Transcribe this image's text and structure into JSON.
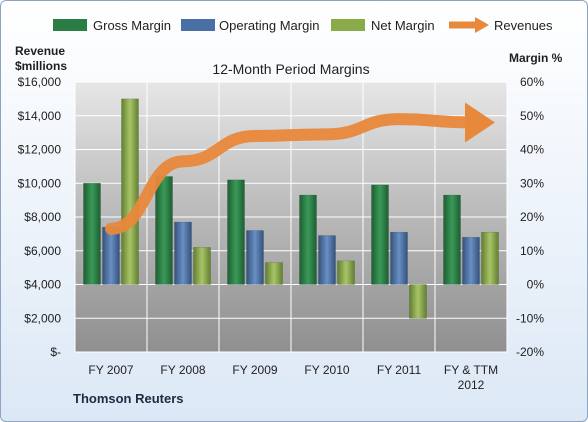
{
  "chart_data": {
    "type": "bar",
    "title": "12-Month Period Margins",
    "categories": [
      "FY 2007",
      "FY 2008",
      "FY 2009",
      "FY 2010",
      "FY 2011",
      "FY & TTM 2012"
    ],
    "y_left": {
      "label_lines": [
        "Revenue",
        "$millions"
      ],
      "range": [
        0,
        16000
      ],
      "tick_values": [
        0,
        2000,
        4000,
        6000,
        8000,
        10000,
        12000,
        14000,
        16000
      ],
      "tick_labels": [
        "$-",
        "$2,000",
        "$4,000",
        "$6,000",
        "$8,000",
        "$10,000",
        "$12,000",
        "$14,000",
        "$16,000"
      ]
    },
    "y_right": {
      "label": "Margin %",
      "range": [
        -20,
        60
      ],
      "tick_values": [
        -20,
        -10,
        0,
        10,
        20,
        30,
        40,
        50,
        60
      ],
      "tick_labels": [
        "-20%",
        "-10%",
        "0%",
        "10%",
        "20%",
        "30%",
        "40%",
        "50%",
        "60%"
      ]
    },
    "series": [
      {
        "name": "Gross Margin",
        "axis": "right",
        "color": "#2a7d45",
        "values": [
          30,
          32,
          31,
          26.5,
          29.5,
          26.5
        ]
      },
      {
        "name": "Operating Margin",
        "axis": "right",
        "color": "#4a6fa5",
        "values": [
          17,
          18.5,
          16,
          14.5,
          15.5,
          14
        ]
      },
      {
        "name": "Net Margin",
        "axis": "right",
        "color": "#8aab4a",
        "values": [
          55,
          11,
          6.5,
          7,
          -10,
          15.5
        ]
      },
      {
        "name": "Revenues",
        "axis": "left",
        "type": "line-arrow",
        "color": "#e8883a",
        "values": [
          7300,
          11300,
          12800,
          12900,
          13800,
          13600
        ]
      }
    ],
    "legend_position": "top",
    "grid": true
  },
  "source_label": "Thomson Reuters"
}
